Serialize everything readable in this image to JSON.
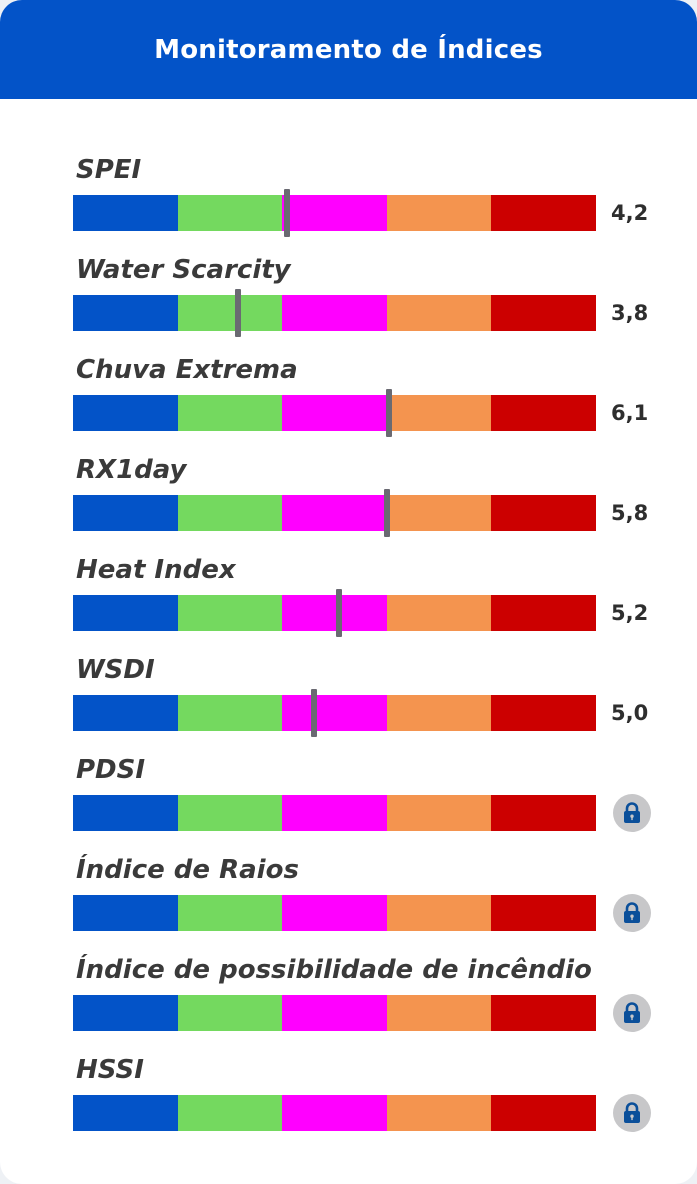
{
  "header": {
    "title": "Monitoramento de Índices"
  },
  "scale_colors": [
    "#0353c8",
    "#74d95f",
    "#ff00ff",
    "#f4944f",
    "#cc0000"
  ],
  "lock_icon": "lock-icon",
  "indices": [
    {
      "label": "SPEI",
      "value": "4,2",
      "locked": false,
      "level": 0.41
    },
    {
      "label": "Water Scarcity",
      "value": "3,8",
      "locked": false,
      "level": 0.315
    },
    {
      "label": "Chuva Extrema",
      "value": "6,1",
      "locked": false,
      "level": 0.604
    },
    {
      "label": "RX1day",
      "value": "5,8",
      "locked": false,
      "level": 0.6
    },
    {
      "label": "Heat Index",
      "value": "5,2",
      "locked": false,
      "level": 0.508
    },
    {
      "label": "WSDI",
      "value": "5,0",
      "locked": false,
      "level": 0.46
    },
    {
      "label": "PDSI",
      "value": "",
      "locked": true
    },
    {
      "label": "Índice de Raios",
      "value": "",
      "locked": true
    },
    {
      "label": "Índice de possibilidade de incêndio",
      "value": "",
      "locked": true
    },
    {
      "label": "HSSI",
      "value": "",
      "locked": true
    }
  ]
}
